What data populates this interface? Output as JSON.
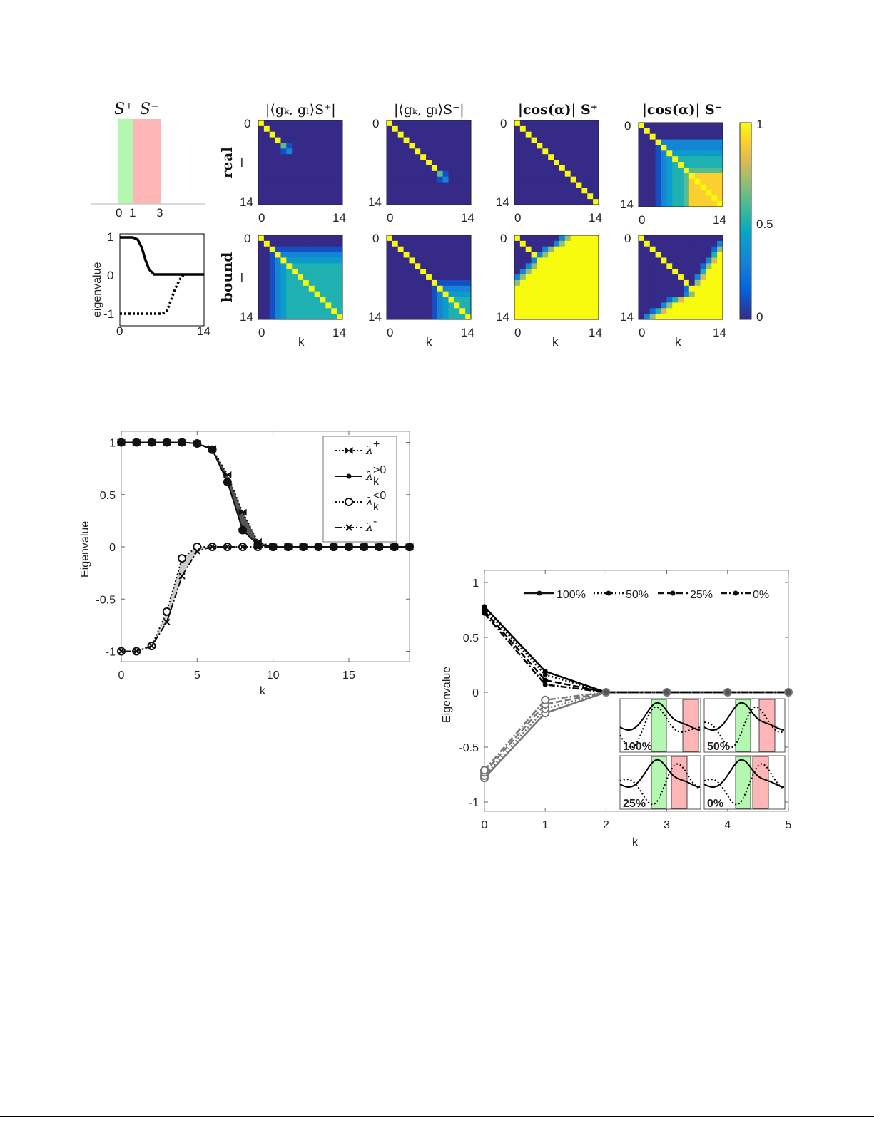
{
  "figure_top": {
    "support_plot": {
      "title_plus": "S⁺",
      "title_minus": "S⁻",
      "ticks": [
        "0",
        "1",
        "3"
      ],
      "green_interval": [
        0,
        1
      ],
      "red_interval": [
        1,
        3
      ],
      "green_color": "#b3f7b0",
      "red_color": "#fdb5b5"
    },
    "eigen_plot": {
      "ylabel": "eigenvalue",
      "yticks": [
        "1",
        "0",
        "-1"
      ],
      "xticks": [
        "0",
        "14"
      ]
    },
    "row_labels": [
      "real",
      "bound"
    ],
    "row_axis_label": "l",
    "col_axis_label": "k",
    "tick_min": "0",
    "tick_max": "14",
    "colorbar": {
      "ticks": [
        "1",
        "0.5",
        "0"
      ],
      "colormap": "parula"
    }
  },
  "chart_data": [
    {
      "type": "heatmap",
      "titles": [
        "|⟨gₖ, gₗ⟩S⁺|",
        "|⟨gₖ, gₗ⟩S⁻|",
        "|cos(α)| S⁺",
        "|cos(α)| S⁻"
      ],
      "rows": [
        "real",
        "bound"
      ],
      "xlabel": "k",
      "ylabel": "l",
      "range": [
        0,
        1
      ],
      "value_encoding": "digit = tenths, X = 1",
      "matrices": [
        [
          "X00000000000000",
          "0X0000000000000",
          "00X000000000000",
          "000X00000000000",
          "000061000000000",
          "000013000000000",
          "000000000000000",
          "000000000000000",
          "000000000000000",
          "000000000000000",
          "000000000000000",
          "000000000000000",
          "000000000000000",
          "000000000000000",
          "000000000000000"
        ],
        [
          "X00000000000000",
          "0X0000000000000",
          "00X000000000000",
          "000X00000000000",
          "0000X0000000000",
          "00000X000000000",
          "000000X00000000",
          "0000000X0000000",
          "00000000X000000",
          "000000000610000",
          "000000000130000",
          "000000000000000",
          "000000000000000",
          "000000000000000",
          "000000000000000"
        ],
        [
          "X00000000000000",
          "0X0000000000000",
          "00X000000000000",
          "000X00000000000",
          "0000X0000000000",
          "00000X000000000",
          "000000X00000000",
          "0000000X0000000",
          "00000000X000000",
          "000000000X00000",
          "0000000000X0000",
          "00000000000X000",
          "000000000000X00",
          "0000000000000X0",
          "00000000000000X"
        ],
        [
          "X00000000000000",
          "0X0000000000000",
          "00X000000000000",
          "000X33333333333",
          "0001X3333333333",
          "00013X444444444",
          "000134X55555555",
          "0001345X5555555",
          "00013455X666666",
          "000134556X99999",
          "0001345569X9999",
          "00013455699X999",
          "000134556999X99",
          "0001345569999X9",
          "00013455699999X"
        ],
        [
          "X00000000000000",
          "0X0000000000000",
          "00X111111111111",
          "001X33333333333",
          "0013X4444444444",
          "00134X555555555",
          "001345X55555555",
          "0013455X5555555",
          "00134555X555555",
          "001345555X55555",
          "0013455555X5555",
          "00134555555X555",
          "001345555555X55",
          "0013455555555X5",
          "00134555555555X"
        ],
        [
          "X00000000000000",
          "0X0000000000000",
          "00X000000000000",
          "000X00000000000",
          "0000X0000000000",
          "00000X000000000",
          "000000X00000000",
          "0000000X0000000",
          "00000000X111111",
          "000000001X33333",
          "0000000013X4444",
          "00000000134X555",
          "000000001345X55",
          "0000000013455X5",
          "00000000134555X"
        ],
        [
          "X000000037XXXXX",
          "0X0000037XXXXXX",
          "00X0037XXXXXXXX",
          "000X37XXXXXXXXX",
          "0003XXXXXXXXXXX",
          "0037XXXXXXXXXXX",
          "037XXXXXXXXXXXX",
          "37XXXXXXXXXXXXX",
          "7XXXXXXXXXXXXXX",
          "XXXXXXXXXXXXXXX",
          "XXXXXXXXXXXXXXX",
          "XXXXXXXXXXXXXXX",
          "XXXXXXXXXXXXXXX",
          "XXXXXXXXXXXXXXX",
          "XXXXXXXXXXXXXXX"
        ],
        [
          "X00000000000000",
          "0X0000000000003",
          "00X000000000027",
          "000X0000000005X",
          "0000X000000038X",
          "00000X0000027XX",
          "000000X00005XXX",
          "0000000X0038XXX",
          "00000000X07XXXX",
          "000000002XXXXXX",
          "0000000037XXXXX",
          "00000258XXXXXXX",
          "000037XXXXXXXXX",
          "00258XXXXXXXXXX",
          "037XXXXXXXXXXXX"
        ]
      ]
    },
    {
      "type": "line",
      "xlabel": "k",
      "ylabel": "Eigenvalue",
      "xlim": [
        0,
        19
      ],
      "ylim": [
        -1.1,
        1.1
      ],
      "xticks": [
        0,
        5,
        10,
        15
      ],
      "yticks": [
        -1,
        -0.5,
        0,
        0.5,
        1
      ],
      "ytick_labels": [
        "-1",
        "-0.5",
        "0",
        "0.5",
        "1"
      ],
      "legend_position": "top-right",
      "x": [
        0,
        1,
        2,
        3,
        4,
        5,
        6,
        7,
        8,
        9,
        10,
        11,
        12,
        13,
        14,
        15,
        16,
        17,
        18,
        19
      ],
      "series": [
        {
          "name": "λ",
          "sup": "+",
          "sub": "",
          "style": "dotted",
          "marker": "bowtie",
          "values": [
            1,
            1,
            1,
            1,
            1,
            0.99,
            0.94,
            0.69,
            0.33,
            0.05,
            0,
            0,
            0,
            0,
            0,
            0,
            0,
            0,
            0,
            0
          ]
        },
        {
          "name": "λ",
          "sup": ">0",
          "sub": "k",
          "style": "solid",
          "marker": "dot",
          "values": [
            1,
            1,
            1,
            1,
            1,
            0.99,
            0.93,
            0.62,
            0.16,
            0.02,
            0,
            0,
            0,
            0,
            0,
            0,
            0,
            0,
            0,
            0
          ]
        },
        {
          "name": "λ",
          "sup": "<0",
          "sub": "k",
          "style": "dotted",
          "marker": "circle",
          "values": [
            -1,
            -1,
            -0.95,
            -0.62,
            -0.11,
            0,
            0,
            0,
            0,
            0,
            0,
            0,
            0,
            0,
            0,
            0,
            0,
            0,
            0,
            0
          ]
        },
        {
          "name": "λ",
          "sup": "-",
          "sub": "",
          "style": "dashdot",
          "marker": "x",
          "values": [
            -1,
            -1,
            -0.95,
            -0.72,
            -0.28,
            -0.04,
            0,
            0,
            0,
            0,
            0,
            0,
            0,
            0,
            0,
            0,
            0,
            0,
            0,
            0
          ]
        }
      ],
      "fills": [
        {
          "between": [
            0,
            1
          ],
          "color": "#555555"
        },
        {
          "between": [
            2,
            3
          ],
          "color": "#cccccc"
        }
      ]
    },
    {
      "type": "line",
      "xlabel": "k",
      "ylabel": "Eigenvalue",
      "xlim": [
        0,
        5
      ],
      "ylim": [
        -1.1,
        1.1
      ],
      "xticks": [
        0,
        1,
        2,
        3,
        4,
        5
      ],
      "yticks": [
        -1,
        -0.5,
        0,
        0.5,
        1
      ],
      "ytick_labels": [
        "-1",
        "-0.5",
        "0",
        "0.5",
        "1"
      ],
      "legend_position": "top",
      "x": [
        0,
        1,
        2,
        3,
        4,
        5
      ],
      "positive_color": "#000000",
      "negative_color": "#777777",
      "series": [
        {
          "name": "100%",
          "style": "solid",
          "positive": [
            0.78,
            0.19,
            0,
            0,
            0,
            0
          ],
          "negative": [
            -0.78,
            -0.19,
            0,
            0,
            0,
            0
          ]
        },
        {
          "name": "50%",
          "style": "dotted",
          "positive": [
            0.76,
            0.16,
            0,
            0,
            0,
            0
          ],
          "negative": [
            -0.76,
            -0.15,
            0,
            0,
            0,
            0
          ]
        },
        {
          "name": "25%",
          "style": "dashed",
          "positive": [
            0.74,
            0.11,
            0,
            0,
            0,
            0
          ],
          "negative": [
            -0.73,
            -0.11,
            0,
            0,
            0,
            0
          ]
        },
        {
          "name": "0%",
          "style": "dashdot",
          "positive": [
            0.72,
            0.07,
            0,
            0,
            0,
            0
          ],
          "negative": [
            -0.71,
            -0.07,
            0,
            0,
            0,
            0
          ]
        }
      ],
      "insets": [
        {
          "label": "100%"
        },
        {
          "label": "50%"
        },
        {
          "label": "25%"
        },
        {
          "label": "0%"
        }
      ]
    }
  ]
}
